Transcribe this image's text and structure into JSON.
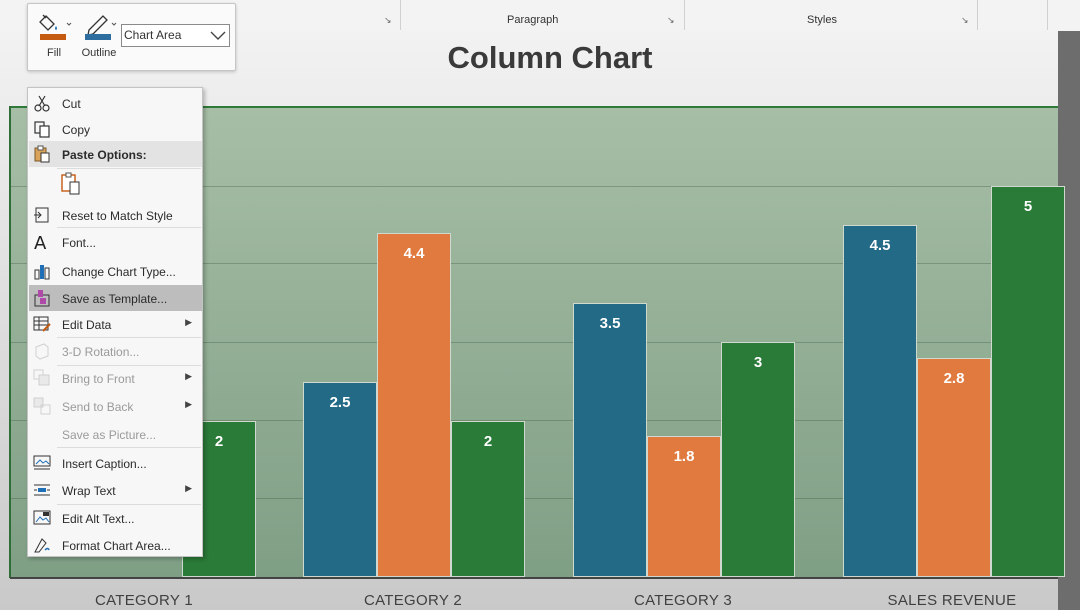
{
  "ribbon": {
    "groups": [
      {
        "label": "Paragraph"
      },
      {
        "label": "Styles"
      }
    ]
  },
  "mini_toolbar": {
    "fill_label": "Fill",
    "outline_label": "Outline",
    "chart_element_value": "Chart Area"
  },
  "context_menu": {
    "items": [
      {
        "label": "Cut",
        "icon": "scissors-icon",
        "state": "enabled"
      },
      {
        "label": "Copy",
        "icon": "copy-icon",
        "state": "enabled"
      },
      {
        "label": "Paste Options:",
        "icon": "paste-icon",
        "state": "header"
      },
      {
        "label": "",
        "icon": "paste-keep-formatting-icon",
        "state": "enabled"
      },
      {
        "label": "Reset to Match Style",
        "icon": "reset-style-icon",
        "state": "enabled"
      },
      {
        "label": "Font...",
        "icon": "font-icon",
        "state": "enabled"
      },
      {
        "label": "Change Chart Type...",
        "icon": "chart-type-icon",
        "state": "enabled"
      },
      {
        "label": "Save as Template...",
        "icon": "template-icon",
        "state": "hover"
      },
      {
        "label": "Edit Data",
        "icon": "edit-data-icon",
        "state": "enabled",
        "submenu": true
      },
      {
        "label": "3-D Rotation...",
        "icon": "rotation-3d-icon",
        "state": "disabled"
      },
      {
        "label": "Bring to Front",
        "icon": "bring-front-icon",
        "state": "disabled",
        "submenu": true
      },
      {
        "label": "Send to Back",
        "icon": "send-back-icon",
        "state": "disabled",
        "submenu": true
      },
      {
        "label": "Save as Picture...",
        "icon": "",
        "state": "disabled"
      },
      {
        "label": "Insert Caption...",
        "icon": "caption-icon",
        "state": "enabled"
      },
      {
        "label": "Wrap Text",
        "icon": "wrap-text-icon",
        "state": "enabled",
        "submenu": true
      },
      {
        "label": "Edit Alt Text...",
        "icon": "alt-text-icon",
        "state": "enabled"
      },
      {
        "label": "Format Chart Area...",
        "icon": "format-area-icon",
        "state": "enabled"
      }
    ]
  },
  "chart_data": {
    "type": "bar",
    "title": "Column Chart",
    "categories": [
      "CATEGORY 1",
      "CATEGORY 2",
      "CATEGORY 3",
      "SALES REVENUE"
    ],
    "series": [
      {
        "values": [
          null,
          2.5,
          3.5,
          4.5
        ],
        "color": "#236a86"
      },
      {
        "values": [
          null,
          4.4,
          1.8,
          2.8
        ],
        "color": "#e07a3f"
      },
      {
        "values": [
          2,
          2,
          3,
          5
        ],
        "color": "#2a7a38"
      }
    ],
    "ylim": [
      0,
      5.2
    ],
    "grid": true
  }
}
